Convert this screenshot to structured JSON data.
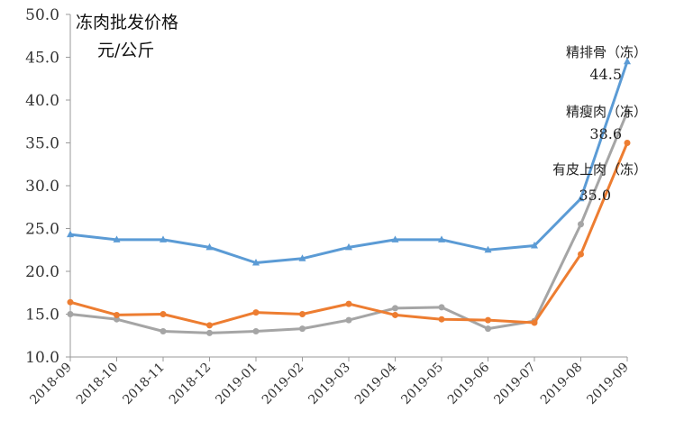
{
  "chart_data": {
    "type": "line",
    "title": "冻肉批发价格",
    "subtitle": "元/公斤",
    "xlabel": "",
    "ylabel": "",
    "ylim": [
      10,
      50
    ],
    "ytick_step": 5,
    "ytick_labels": [
      "10.0",
      "15.0",
      "20.0",
      "25.0",
      "30.0",
      "35.0",
      "40.0",
      "45.0",
      "50.0"
    ],
    "categories": [
      "2018-09",
      "2018-10",
      "2018-11",
      "2018-12",
      "2019-01",
      "2019-02",
      "2019-03",
      "2019-04",
      "2019-05",
      "2019-06",
      "2019-07",
      "2019-08",
      "2019-09"
    ],
    "grid": false,
    "legend": "none",
    "series": [
      {
        "name": "精排骨（冻）",
        "color": "#5b9bd5",
        "marker": "triangle",
        "values": [
          24.3,
          23.7,
          23.7,
          22.8,
          21.0,
          21.5,
          22.8,
          23.7,
          23.7,
          22.5,
          23.0,
          28.5,
          44.5
        ],
        "end_label": "44.5"
      },
      {
        "name": "精瘦肉（冻）",
        "color": "#a5a5a5",
        "marker": "circle",
        "values": [
          15.0,
          14.4,
          13.0,
          12.8,
          13.0,
          13.3,
          14.3,
          15.7,
          15.8,
          13.3,
          14.2,
          25.5,
          38.6
        ],
        "end_label": "38.6"
      },
      {
        "name": "有皮上肉（冻）",
        "color": "#ed7d31",
        "marker": "circle",
        "values": [
          16.4,
          14.9,
          15.0,
          13.7,
          15.2,
          15.0,
          16.2,
          14.9,
          14.4,
          14.3,
          14.0,
          22.0,
          35.0
        ],
        "end_label": "35.0"
      }
    ]
  }
}
